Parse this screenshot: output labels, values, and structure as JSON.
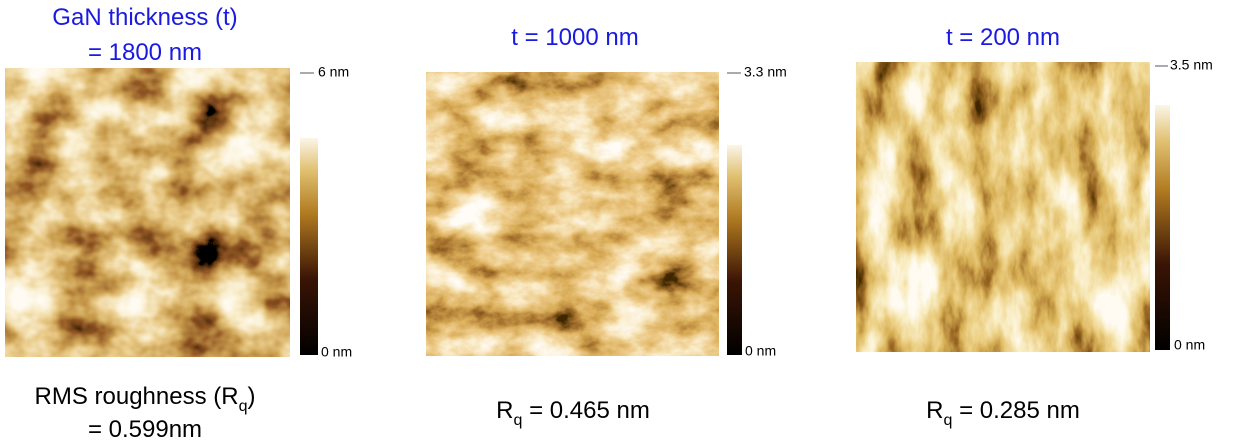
{
  "panels": [
    {
      "title_lines": [
        "GaN thickness (t)",
        "= 1800 nm"
      ],
      "scale_max": "6 nm",
      "scale_min": "0 nm",
      "roughness": [
        {
          "before": "RMS roughness (R",
          "sub": "q",
          "after": ")"
        },
        {
          "before": "= 0.599nm"
        }
      ]
    },
    {
      "title_lines": [
        "t = 1000 nm"
      ],
      "scale_max": "3.3 nm",
      "scale_min": "0 nm",
      "roughness": [
        {
          "before": "R",
          "sub": "q",
          "after": " = 0.465 nm"
        }
      ]
    },
    {
      "title_lines": [
        "t = 200 nm"
      ],
      "scale_max": "3.5 nm",
      "scale_min": "0 nm",
      "roughness": [
        {
          "before": "R",
          "sub": "q",
          "after": " = 0.285 nm"
        }
      ]
    }
  ]
}
